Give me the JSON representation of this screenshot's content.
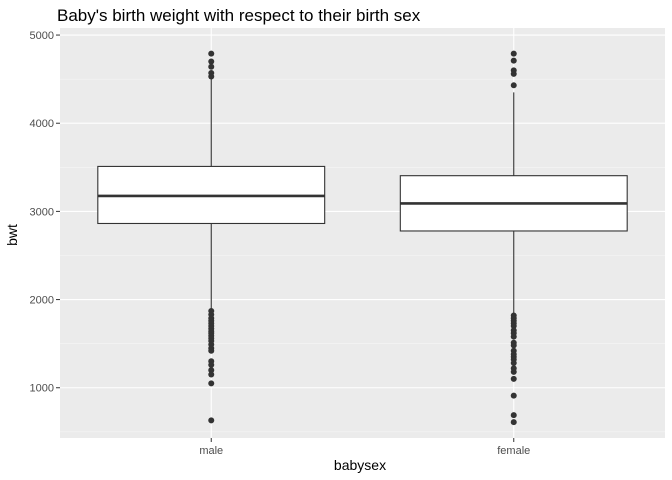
{
  "chart_data": {
    "type": "boxplot",
    "title": "Baby's birth weight with respect to their birth sex",
    "xlabel": "babysex",
    "ylabel": "bwt",
    "categories": [
      "male",
      "female"
    ],
    "ylim": [
      430,
      5080
    ],
    "yticks": [
      1000,
      2000,
      3000,
      4000,
      5000
    ],
    "grid": true,
    "boxes": [
      {
        "category": "male",
        "q1": 2863,
        "median": 3175,
        "q3": 3510,
        "whisker_low": 1880,
        "whisker_high": 4500,
        "outliers": [
          4790,
          4700,
          4640,
          4570,
          4530,
          1870,
          1830,
          1790,
          1760,
          1730,
          1700,
          1670,
          1640,
          1620,
          1590,
          1560,
          1530,
          1490,
          1450,
          1420,
          1300,
          1260,
          1200,
          1150,
          1050,
          630
        ]
      },
      {
        "category": "female",
        "q1": 2778,
        "median": 3090,
        "q3": 3405,
        "whisker_low": 1830,
        "whisker_high": 4350,
        "outliers": [
          4790,
          4710,
          4600,
          4560,
          4430,
          1820,
          1790,
          1760,
          1730,
          1700,
          1650,
          1620,
          1580,
          1510,
          1480,
          1420,
          1380,
          1350,
          1320,
          1280,
          1220,
          1180,
          1100,
          910,
          690,
          610
        ]
      }
    ]
  }
}
